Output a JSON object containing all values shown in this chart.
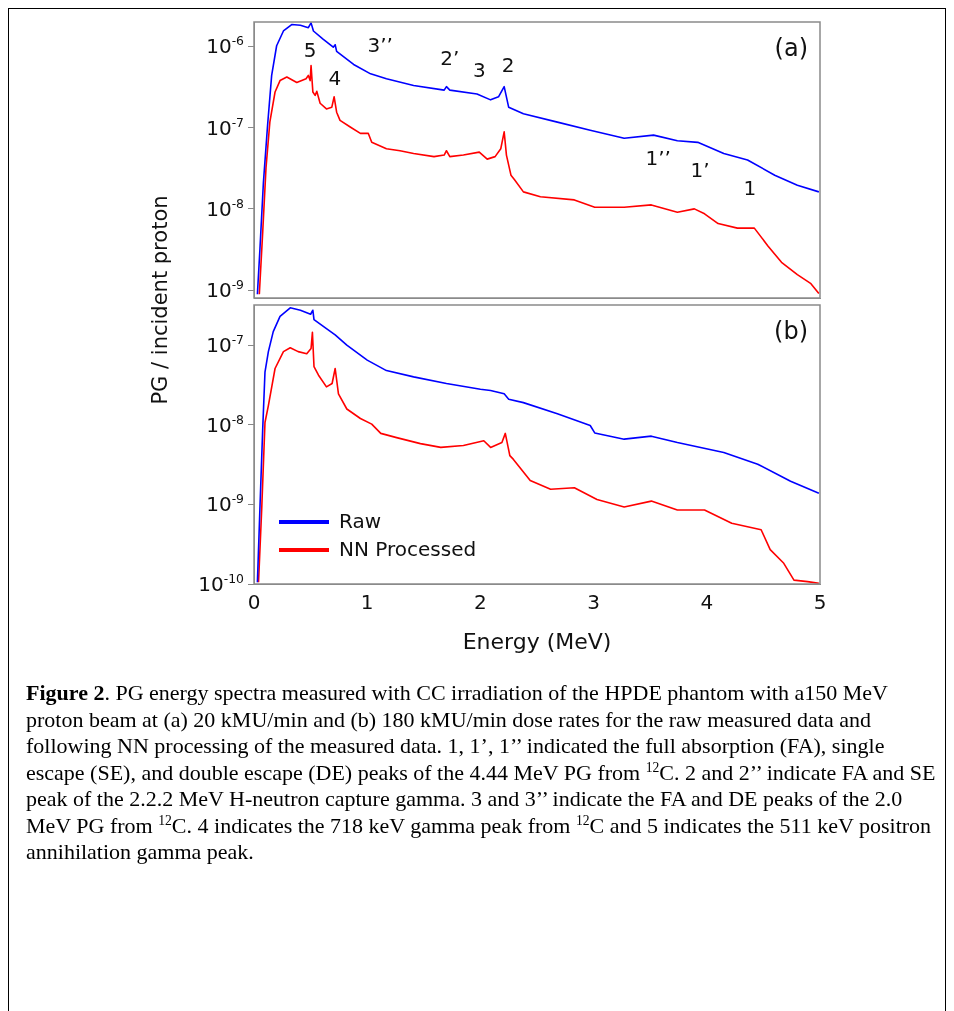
{
  "chart_data": [
    {
      "type": "line",
      "title": "(a)",
      "ylabel": "PG / incident proton",
      "log": "y",
      "tick_labels": "y",
      "xlim": [
        0,
        5
      ],
      "xticks": [
        0,
        1,
        2,
        3,
        4,
        5
      ],
      "ylim": [
        8e-10,
        2e-06
      ],
      "yticks": [
        {
          "value": 1e-09,
          "label": "10$^{-9}$"
        },
        {
          "value": 1e-08,
          "label": "10$^{-8}$"
        },
        {
          "value": 1e-07,
          "label": "10$^{-7}$"
        },
        {
          "value": 1e-06,
          "label": "10$^{-6}$"
        }
      ],
      "series": [
        {
          "color": "#0000ff",
          "x": [
            0.03,
            0.053,
            0.083,
            0.12,
            0.156,
            0.2,
            0.26,
            0.333,
            0.41,
            0.48,
            0.504,
            0.525,
            0.61,
            0.7,
            0.717,
            0.73,
            0.88,
            1.03,
            1.17,
            1.41,
            1.68,
            1.7,
            1.73,
            1.97,
            2.09,
            2.16,
            2.21,
            2.25,
            2.38,
            2.68,
            2.97,
            3.27,
            3.53,
            3.74,
            3.92,
            4.15,
            4.36,
            4.6,
            4.8,
            4.99
          ],
          "values": [
            8.9e-10,
            3.3e-09,
            2.1e-08,
            1.07e-07,
            4.4e-07,
            1.02e-06,
            1.55e-06,
            1.86e-06,
            1.82e-06,
            1.7e-06,
            1.95e-06,
            1.55e-06,
            1.23e-06,
            9.8e-07,
            1.05e-06,
            8.7e-07,
            6e-07,
            4.6e-07,
            4e-07,
            3.3e-07,
            2.9e-07,
            3.2e-07,
            2.9e-07,
            2.6e-07,
            2.2e-07,
            2.4e-07,
            3.2e-07,
            1.78e-07,
            1.48e-07,
            1.17e-07,
            9.3e-08,
            7.4e-08,
            8.1e-08,
            6.9e-08,
            6.6e-08,
            4.8e-08,
            4e-08,
            2.6e-08,
            1.95e-08,
            1.62e-08
          ]
        },
        {
          "color": "#ff0000",
          "x": [
            0.047,
            0.077,
            0.106,
            0.14,
            0.186,
            0.23,
            0.29,
            0.378,
            0.46,
            0.48,
            0.496,
            0.504,
            0.52,
            0.54,
            0.555,
            0.584,
            0.64,
            0.687,
            0.708,
            0.73,
            0.76,
            0.85,
            0.94,
            1.01,
            1.04,
            1.17,
            1.29,
            1.41,
            1.59,
            1.68,
            1.7,
            1.73,
            1.85,
            1.99,
            2.06,
            2.13,
            2.18,
            2.21,
            2.23,
            2.27,
            2.3,
            2.38,
            2.53,
            2.83,
            3.01,
            3.27,
            3.51,
            3.74,
            3.89,
            3.98,
            4.1,
            4.27,
            4.42,
            4.54,
            4.66,
            4.8,
            4.92,
            4.99
          ],
          "values": [
            8.9e-10,
            5.2e-09,
            3.2e-08,
            1.17e-07,
            2.75e-07,
            3.8e-07,
            4.2e-07,
            3.6e-07,
            4e-07,
            4.4e-07,
            3.8e-07,
            5.8e-07,
            2.75e-07,
            2.5e-07,
            2.8e-07,
            2e-07,
            1.7e-07,
            1.78e-07,
            2.4e-07,
            1.55e-07,
            1.23e-07,
            1.02e-07,
            8.5e-08,
            8.5e-08,
            6.6e-08,
            5.5e-08,
            5.2e-08,
            4.8e-08,
            4.4e-08,
            4.6e-08,
            5.2e-08,
            4.4e-08,
            4.6e-08,
            5e-08,
            4.1e-08,
            4.4e-08,
            5.5e-08,
            8.9e-08,
            4.6e-08,
            2.6e-08,
            2.3e-08,
            1.62e-08,
            1.41e-08,
            1.29e-08,
            1.05e-08,
            1.05e-08,
            1.12e-08,
            9.1e-09,
            1e-08,
            8.7e-09,
            6.6e-09,
            5.8e-09,
            5.8e-09,
            3.5e-09,
            2.2e-09,
            1.55e-09,
            1.2e-09,
            9.1e-10
          ]
        }
      ],
      "annotations": [
        "5",
        "4",
        "3’’",
        "2’",
        "3",
        "2",
        "1’’",
        "1’",
        "1"
      ]
    },
    {
      "type": "line",
      "title": "(b)",
      "xlabel": "Energy (MeV)",
      "log": "y",
      "legend": "bottom left",
      "xlim": [
        0,
        5
      ],
      "xticks": [
        0,
        1,
        2,
        3,
        4,
        5
      ],
      "ylim": [
        1e-10,
        3.2e-07
      ],
      "yticks": [
        {
          "value": 1e-10,
          "label": "10$^{-10}$"
        },
        {
          "value": 1e-09,
          "label": "10$^{-9}$"
        },
        {
          "value": 1e-08,
          "label": "10$^{-8}$"
        },
        {
          "value": 1e-07,
          "label": "10$^{-7}$"
        }
      ],
      "series": [
        {
          "name": "Raw",
          "color": "#0000ff",
          "x": [
            0.03,
            0.053,
            0.077,
            0.097,
            0.127,
            0.17,
            0.23,
            0.32,
            0.41,
            0.5,
            0.52,
            0.53,
            0.64,
            0.717,
            0.82,
            1.0,
            1.17,
            1.41,
            1.7,
            2.0,
            2.09,
            2.21,
            2.25,
            2.38,
            2.68,
            2.97,
            3.01,
            3.27,
            3.51,
            3.74,
            4.15,
            4.45,
            4.74,
            4.99
          ],
          "values": [
            1.05e-10,
            9.5e-10,
            8.9e-09,
            4.6e-08,
            8.3e-08,
            1.48e-07,
            2.3e-07,
            2.95e-07,
            2.75e-07,
            2.45e-07,
            2.75e-07,
            2.1e-07,
            1.62e-07,
            1.35e-07,
            1e-07,
            6.5e-08,
            4.8e-08,
            4e-08,
            3.3e-08,
            2.8e-08,
            2.7e-08,
            2.45e-08,
            2.1e-08,
            1.9e-08,
            1.38e-08,
            9.8e-09,
            7.9e-09,
            6.6e-09,
            7.2e-09,
            6e-09,
            4.5e-09,
            3.2e-09,
            1.95e-09,
            1.38e-09
          ]
        },
        {
          "name": "NN Processed",
          "color": "#ff0000",
          "x": [
            0.04,
            0.068,
            0.097,
            0.127,
            0.186,
            0.26,
            0.32,
            0.39,
            0.466,
            0.504,
            0.516,
            0.53,
            0.57,
            0.64,
            0.69,
            0.717,
            0.746,
            0.82,
            0.94,
            1.04,
            1.12,
            1.26,
            1.47,
            1.65,
            1.85,
            2.03,
            2.09,
            2.19,
            2.22,
            2.26,
            2.29,
            2.44,
            2.62,
            2.83,
            3.03,
            3.27,
            3.51,
            3.74,
            3.98,
            4.22,
            4.48,
            4.56,
            4.68,
            4.77,
            4.89,
            4.99
          ],
          "values": [
            1.05e-10,
            8.7e-10,
            1.07e-08,
            1.74e-08,
            5.1e-08,
            8.3e-08,
            9.3e-08,
            8.3e-08,
            7.8e-08,
            9.1e-08,
            1.45e-07,
            5.4e-08,
            4.2e-08,
            3e-08,
            3.3e-08,
            5.1e-08,
            2.45e-08,
            1.58e-08,
            1.2e-08,
            1.02e-08,
            7.8e-09,
            6.9e-09,
            5.8e-09,
            5.2e-09,
            5.5e-09,
            6.3e-09,
            5.2e-09,
            6e-09,
            7.8e-09,
            4.1e-09,
            3.7e-09,
            2e-09,
            1.55e-09,
            1.62e-09,
            1.15e-09,
            9.3e-10,
            1.1e-09,
            8.5e-10,
            8.5e-10,
            5.8e-10,
            4.8e-10,
            2.7e-10,
            1.82e-10,
            1.12e-10,
            1.07e-10,
            1.02e-10
          ]
        }
      ],
      "annotations": [
        "Figure 2",
        ". PG energy spectra measured with CC irradiation of the HPDE phantom with a150 MeV proton beam at (a) 20 kMU/min and (b) 180 kMU/min dose rates for the raw measured data and following NN processing of the measured data.  1, 1’, 1’’ indicated the full absorption (FA), single escape (SE), and double escape (DE) peaks of the 4.44 MeV PG from $^{12}$C. 2 and  2’’ indicate FA and SE peak of the 2.2.2 MeV H-neutron capture gamma. 3 and 3’’ indicate the FA and DE peaks of the 2.0 MeV PG from $^{12}$C. 4 indicates the 718 keV gamma peak from $^{12}$C and 5 indicates the 511 keV positron annihilation gamma peak."
      ]
    }
  ]
}
